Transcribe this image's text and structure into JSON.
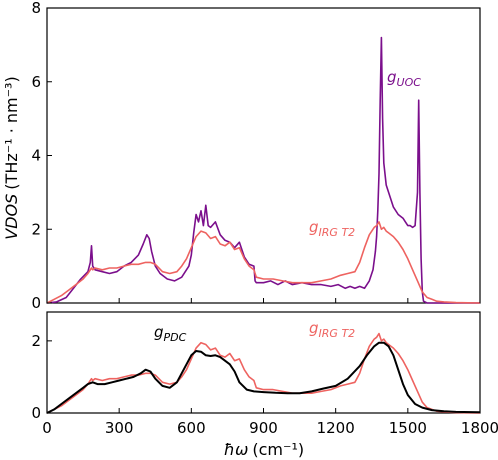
{
  "chart_data": [
    {
      "type": "line",
      "panel": "top",
      "xlabel": "",
      "ylabel": "VDOS (THz⁻¹ · nm⁻³)",
      "ylabel_main": "VDOS",
      "ylabel_unit": "(THz⁻¹ · nm⁻³)",
      "xlim": [
        0,
        1800
      ],
      "ylim": [
        0,
        8
      ],
      "xticks": [
        0,
        300,
        600,
        900,
        1200,
        1500,
        1800
      ],
      "yticks": [
        0,
        2,
        4,
        6,
        8
      ],
      "ytick_labels": [
        "0",
        "2",
        "4",
        "6",
        "8"
      ],
      "grid": false,
      "series": [
        {
          "name": "g_UOC",
          "label_main": "g",
          "label_sub": "UOC",
          "color": "#7b0f8c",
          "x": [
            0,
            40,
            80,
            110,
            140,
            170,
            180,
            185,
            190,
            200,
            230,
            260,
            290,
            320,
            350,
            380,
            400,
            415,
            425,
            435,
            450,
            470,
            500,
            530,
            560,
            590,
            600,
            610,
            620,
            630,
            640,
            650,
            660,
            670,
            680,
            700,
            720,
            740,
            760,
            780,
            800,
            820,
            840,
            860,
            865,
            870,
            900,
            930,
            960,
            990,
            1020,
            1060,
            1100,
            1140,
            1180,
            1210,
            1240,
            1260,
            1280,
            1300,
            1320,
            1340,
            1355,
            1365,
            1370,
            1375,
            1380,
            1385,
            1390,
            1395,
            1400,
            1410,
            1420,
            1440,
            1460,
            1480,
            1490,
            1500,
            1510,
            1520,
            1530,
            1540,
            1545,
            1550,
            1555,
            1560,
            1565,
            1580,
            1620,
            1700,
            1800
          ],
          "y": [
            0,
            0.03,
            0.15,
            0.4,
            0.65,
            0.85,
            1.1,
            1.55,
            1.0,
            0.9,
            0.85,
            0.8,
            0.85,
            1.0,
            1.1,
            1.3,
            1.6,
            1.85,
            1.75,
            1.4,
            1.0,
            0.8,
            0.65,
            0.6,
            0.7,
            1.0,
            1.3,
            1.9,
            2.4,
            2.2,
            2.5,
            2.1,
            2.65,
            2.1,
            2.05,
            2.2,
            1.85,
            1.7,
            1.65,
            1.5,
            1.65,
            1.25,
            1.05,
            1.0,
            0.6,
            0.55,
            0.55,
            0.6,
            0.5,
            0.6,
            0.5,
            0.55,
            0.5,
            0.5,
            0.45,
            0.5,
            0.4,
            0.45,
            0.4,
            0.45,
            0.4,
            0.6,
            0.9,
            1.4,
            1.8,
            2.5,
            3.5,
            5.5,
            7.2,
            5.0,
            3.8,
            3.2,
            3.0,
            2.6,
            2.4,
            2.3,
            2.2,
            2.1,
            2.1,
            2.05,
            2.1,
            3.0,
            5.5,
            3.0,
            1.2,
            0.3,
            0.05,
            0,
            0,
            0,
            0
          ]
        },
        {
          "name": "g_IRG T2",
          "label_main": "g",
          "label_sub": "IRG T2",
          "color": "#ee6360",
          "x": [
            0,
            30,
            60,
            90,
            120,
            150,
            170,
            180,
            185,
            190,
            200,
            230,
            260,
            290,
            320,
            350,
            380,
            410,
            430,
            450,
            480,
            510,
            540,
            560,
            580,
            600,
            620,
            640,
            660,
            680,
            700,
            720,
            740,
            760,
            780,
            800,
            820,
            840,
            860,
            870,
            900,
            940,
            980,
            1020,
            1060,
            1100,
            1140,
            1180,
            1220,
            1250,
            1280,
            1300,
            1320,
            1340,
            1360,
            1370,
            1380,
            1390,
            1400,
            1410,
            1420,
            1440,
            1460,
            1480,
            1500,
            1520,
            1540,
            1560,
            1580,
            1600,
            1620,
            1650,
            1700,
            1800
          ],
          "y": [
            0,
            0.1,
            0.2,
            0.35,
            0.5,
            0.65,
            0.8,
            0.9,
            0.95,
            0.9,
            0.95,
            0.9,
            0.95,
            0.95,
            1.0,
            1.05,
            1.05,
            1.1,
            1.1,
            1.05,
            0.85,
            0.8,
            0.85,
            1.0,
            1.2,
            1.5,
            1.8,
            1.95,
            1.9,
            1.75,
            1.8,
            1.6,
            1.55,
            1.65,
            1.45,
            1.5,
            1.2,
            1.0,
            0.9,
            0.7,
            0.65,
            0.65,
            0.6,
            0.55,
            0.55,
            0.55,
            0.6,
            0.65,
            0.75,
            0.8,
            0.85,
            1.1,
            1.5,
            1.85,
            2.05,
            2.1,
            2.2,
            2.0,
            2.05,
            1.95,
            1.9,
            1.8,
            1.65,
            1.45,
            1.2,
            0.9,
            0.6,
            0.3,
            0.15,
            0.1,
            0.05,
            0.03,
            0.01,
            0
          ]
        }
      ],
      "annotations": [
        {
          "text": "g_UOC",
          "series": "g_UOC"
        },
        {
          "text": "g_IRG T2",
          "series": "g_IRG T2"
        }
      ]
    },
    {
      "type": "line",
      "panel": "bottom",
      "xlabel": "ħω (cm⁻¹)",
      "xlabel_main": "ħω",
      "xlabel_unit": "(cm⁻¹)",
      "ylabel": "",
      "xlim": [
        0,
        1800
      ],
      "ylim": [
        0,
        2.8
      ],
      "xticks": [
        0,
        300,
        600,
        900,
        1200,
        1500,
        1800
      ],
      "xtick_labels": [
        "0",
        "300",
        "600",
        "900",
        "1200",
        "1500",
        "1800"
      ],
      "yticks": [
        0,
        2
      ],
      "ytick_labels": [
        "0",
        "2"
      ],
      "grid": false,
      "series": [
        {
          "name": "g_PDC",
          "label_main": "g",
          "label_sub": "PDC",
          "color": "#000000",
          "x": [
            0,
            30,
            60,
            90,
            120,
            150,
            170,
            190,
            210,
            240,
            270,
            300,
            330,
            360,
            390,
            410,
            430,
            450,
            480,
            510,
            540,
            560,
            580,
            600,
            620,
            640,
            660,
            680,
            700,
            720,
            740,
            760,
            780,
            800,
            830,
            860,
            900,
            950,
            1000,
            1050,
            1100,
            1150,
            1200,
            1250,
            1300,
            1330,
            1360,
            1380,
            1400,
            1420,
            1440,
            1460,
            1480,
            1500,
            1530,
            1560,
            1600,
            1650,
            1700,
            1800
          ],
          "y": [
            0,
            0.1,
            0.25,
            0.4,
            0.55,
            0.7,
            0.8,
            0.85,
            0.8,
            0.8,
            0.85,
            0.9,
            0.95,
            1.0,
            1.1,
            1.2,
            1.15,
            0.95,
            0.75,
            0.7,
            0.85,
            1.1,
            1.35,
            1.6,
            1.72,
            1.7,
            1.6,
            1.58,
            1.6,
            1.55,
            1.45,
            1.35,
            1.15,
            0.85,
            0.65,
            0.6,
            0.58,
            0.56,
            0.55,
            0.55,
            0.6,
            0.68,
            0.75,
            0.95,
            1.3,
            1.6,
            1.85,
            1.95,
            1.95,
            1.85,
            1.6,
            1.2,
            0.8,
            0.5,
            0.25,
            0.15,
            0.08,
            0.05,
            0.03,
            0.02
          ]
        },
        {
          "name": "g_IRG T2",
          "label_main": "g",
          "label_sub": "IRG T2",
          "color": "#ee6360",
          "x": [
            0,
            30,
            60,
            90,
            120,
            150,
            170,
            180,
            185,
            190,
            200,
            230,
            260,
            290,
            320,
            350,
            380,
            410,
            430,
            450,
            480,
            510,
            540,
            560,
            580,
            600,
            620,
            640,
            660,
            680,
            700,
            720,
            740,
            760,
            780,
            800,
            820,
            840,
            860,
            870,
            900,
            940,
            980,
            1020,
            1060,
            1100,
            1140,
            1180,
            1220,
            1250,
            1280,
            1300,
            1320,
            1340,
            1360,
            1370,
            1380,
            1390,
            1400,
            1410,
            1420,
            1440,
            1460,
            1480,
            1500,
            1520,
            1540,
            1560,
            1580,
            1600,
            1620,
            1650,
            1700,
            1800
          ],
          "y": [
            0,
            0.1,
            0.2,
            0.35,
            0.5,
            0.65,
            0.8,
            0.9,
            0.95,
            0.9,
            0.95,
            0.9,
            0.95,
            0.95,
            1.0,
            1.05,
            1.05,
            1.1,
            1.1,
            1.05,
            0.85,
            0.8,
            0.85,
            1.0,
            1.2,
            1.5,
            1.8,
            1.95,
            1.9,
            1.75,
            1.8,
            1.6,
            1.55,
            1.65,
            1.45,
            1.5,
            1.2,
            1.0,
            0.9,
            0.7,
            0.65,
            0.65,
            0.6,
            0.55,
            0.55,
            0.55,
            0.6,
            0.65,
            0.75,
            0.8,
            0.85,
            1.1,
            1.5,
            1.85,
            2.05,
            2.1,
            2.2,
            2.0,
            2.05,
            1.95,
            1.9,
            1.8,
            1.65,
            1.45,
            1.2,
            0.9,
            0.6,
            0.3,
            0.15,
            0.1,
            0.05,
            0.03,
            0.01,
            0
          ]
        }
      ],
      "annotations": [
        {
          "text": "g_PDC",
          "series": "g_PDC"
        },
        {
          "text": "g_IRG T2",
          "series": "g_IRG T2"
        }
      ]
    }
  ]
}
